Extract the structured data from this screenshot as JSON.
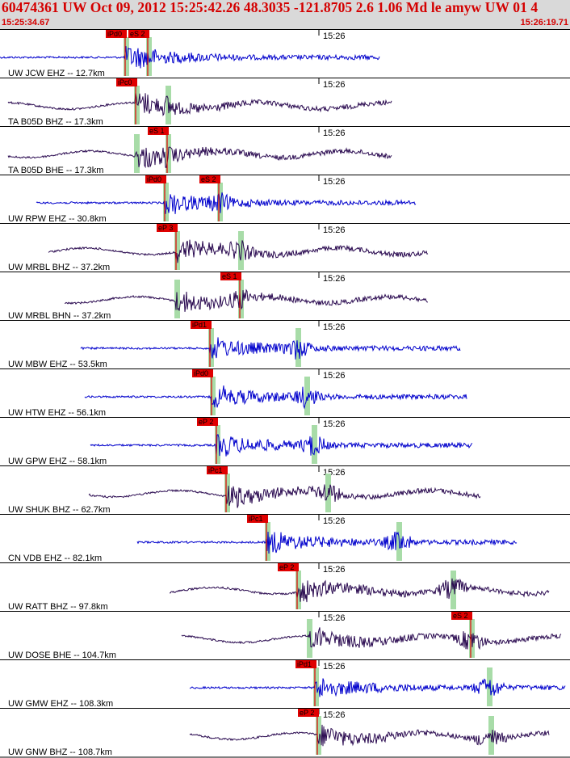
{
  "header": {
    "title": "60474361 UW Oct 09, 2012 15:25:42.26   48.3035 -121.8705  2.6 1.06 Md le amyw UW 01    4",
    "start_time": "15:25:34.67",
    "end_time": "15:26:19.71"
  },
  "time_mark": "15:26",
  "colors": {
    "header_bg": "#d9d9d9",
    "header_text": "#d40000",
    "trace_blue": "#0000cc",
    "trace_purple": "#2a0a50",
    "pick_red": "#e00000",
    "predicted_green": "#a8dca8"
  },
  "traces": [
    {
      "label": "UW JCW EHZ -- 12.7km",
      "color": "blue",
      "picks": [
        {
          "label": "iPd0",
          "pos": 155
        },
        {
          "label": "eS 2",
          "pos": 183
        }
      ],
      "green": [
        155,
        183
      ]
    },
    {
      "label": "TA B05D BHZ -- 17.3km",
      "color": "purple",
      "picks": [
        {
          "label": "iPc0",
          "pos": 168
        }
      ],
      "green": [
        168,
        207
      ]
    },
    {
      "label": "TA B05D BHE -- 17.3km",
      "color": "purple",
      "picks": [
        {
          "label": "eS 1",
          "pos": 207
        }
      ],
      "green": [
        168,
        207
      ]
    },
    {
      "label": "UW RPW EHZ -- 30.8km",
      "color": "blue",
      "picks": [
        {
          "label": "iPd0",
          "pos": 204
        },
        {
          "label": "eS 2",
          "pos": 271
        }
      ],
      "green": [
        204,
        271
      ]
    },
    {
      "label": "UW MRBL BHZ -- 37.2km",
      "color": "purple",
      "picks": [
        {
          "label": "eP 3",
          "pos": 218
        }
      ],
      "green": [
        218,
        297
      ]
    },
    {
      "label": "UW MRBL BHN -- 37.2km",
      "color": "purple",
      "picks": [
        {
          "label": "eS 1",
          "pos": 297
        }
      ],
      "green": [
        218,
        297
      ]
    },
    {
      "label": "UW MBW EHZ -- 53.5km",
      "color": "blue",
      "picks": [
        {
          "label": "iPd1",
          "pos": 260
        }
      ],
      "green": [
        260,
        368
      ]
    },
    {
      "label": "UW HTW EHZ -- 56.1km",
      "color": "blue",
      "picks": [
        {
          "label": "iPd0",
          "pos": 262
        }
      ],
      "green": [
        262,
        379
      ]
    },
    {
      "label": "UW GPW EHZ -- 58.1km",
      "color": "blue",
      "picks": [
        {
          "label": "eP 2",
          "pos": 268
        }
      ],
      "green": [
        268,
        388
      ]
    },
    {
      "label": "UW SHUK BHZ -- 62.7km",
      "color": "purple",
      "picks": [
        {
          "label": "iPc1",
          "pos": 280
        }
      ],
      "green": [
        280,
        405
      ]
    },
    {
      "label": "CN VDB EHZ -- 82.1km",
      "color": "blue",
      "picks": [
        {
          "label": "iPc1",
          "pos": 330
        }
      ],
      "green": [
        330,
        493
      ]
    },
    {
      "label": "UW RATT BHZ -- 97.8km",
      "color": "purple",
      "picks": [
        {
          "label": "eP 2",
          "pos": 368
        }
      ],
      "green": [
        368,
        560
      ]
    },
    {
      "label": "UW DOSE BHE -- 104.7km",
      "color": "purple",
      "picks": [
        {
          "label": "eS 2",
          "pos": 583
        }
      ],
      "green": [
        382,
        583
      ]
    },
    {
      "label": "UW GMW EHZ -- 108.3km",
      "color": "blue",
      "picks": [
        {
          "label": "iPd1",
          "pos": 390
        }
      ],
      "green": [
        390,
        605
      ]
    },
    {
      "label": "UW GNW BHZ -- 108.7km",
      "color": "purple",
      "picks": [
        {
          "label": "eP 2",
          "pos": 393
        }
      ],
      "green": [
        393,
        607
      ]
    }
  ]
}
